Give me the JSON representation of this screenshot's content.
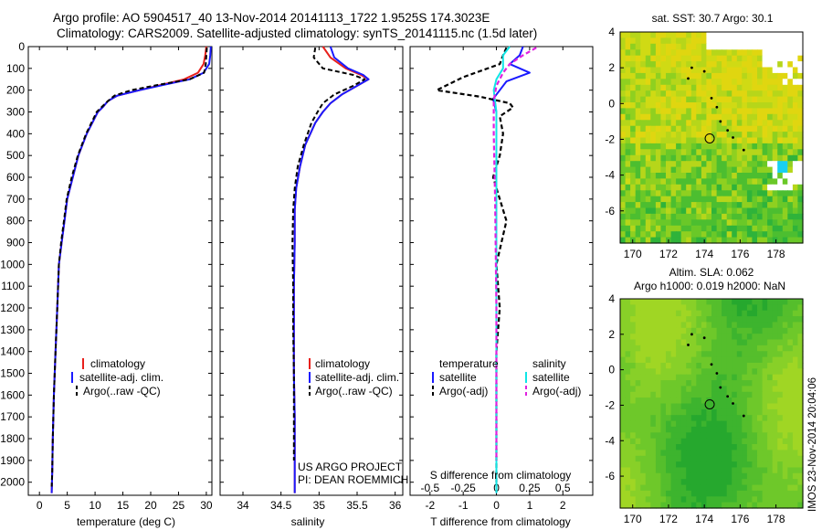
{
  "header": {
    "title_line1": "Argo profile: AO 5904517_40 13-Nov-2014 20141113_1722 1.9525S 174.3023E",
    "title_line2": "Climatology: CARS2009. Satellite-adjusted climatology: synTS_20141115.nc (1.5d later)"
  },
  "credit": {
    "line1": "US ARGO PROJECT",
    "line2": "PI: DEAN ROEMMICH"
  },
  "watermark": "IMOS 23-Nov-2014 20:04:06",
  "colors": {
    "climatology": "#e8201c",
    "satellite": "#1a1aff",
    "argo": "#000000",
    "sat_diff": "#10e6e6",
    "argo_s_diff": "#e020e0",
    "map_low": "#1aa832",
    "map_mid": "#7acc22",
    "map_high": "#d8dc10",
    "map_white": "#ffffff",
    "map_cyan": "#18d0f0"
  },
  "legend_profile": {
    "climatology": "climatology",
    "satellite": "satellite-adj. clim.",
    "argo": "Argo(..raw -QC)"
  },
  "legend_diff": {
    "temperature_header": "temperature",
    "salinity_header": "salinity",
    "t_satellite": "satellite",
    "t_argo": "Argo(-adj)",
    "s_satellite": "satellite",
    "s_argo": "Argo(-adj)"
  },
  "sst_map": {
    "title": "sat. SST: 30.7  Argo: 30.1",
    "float_lon": 174.3,
    "float_lat": -1.95
  },
  "sla_map": {
    "title_line1": "Altim. SLA: 0.062",
    "title_line2": "Argo h1000: 0.019  h2000: NaN",
    "float_lon": 174.3,
    "float_lat": -1.95
  },
  "chart_data": [
    {
      "type": "line",
      "panel": "temperature",
      "xlabel": "temperature (deg C)",
      "ylabel": "",
      "xlim": [
        -2,
        31
      ],
      "ylim": [
        2060,
        0
      ],
      "xticks": [
        0,
        5,
        10,
        15,
        20,
        25,
        30
      ],
      "yticks": [
        0,
        100,
        200,
        300,
        400,
        500,
        600,
        700,
        800,
        900,
        1000,
        1100,
        1200,
        1300,
        1400,
        1500,
        1600,
        1700,
        1800,
        1900,
        2000
      ],
      "series": [
        {
          "name": "climatology",
          "x": [
            30.0,
            29.8,
            29.5,
            28.5,
            26.0,
            22.0,
            18.0,
            14.0,
            12.3,
            11.5,
            10.5,
            8.5,
            7.0,
            6.0,
            5.0,
            4.5,
            4.0,
            3.5,
            3.2,
            2.9,
            2.6,
            2.4,
            2.3,
            2.2
          ],
          "y": [
            0,
            40,
            80,
            120,
            150,
            175,
            200,
            225,
            250,
            275,
            300,
            400,
            500,
            600,
            700,
            800,
            900,
            1000,
            1200,
            1400,
            1600,
            1800,
            1950,
            2050
          ]
        },
        {
          "name": "satellite-adj. clim.",
          "x": [
            30.8,
            30.7,
            30.5,
            29.5,
            27.0,
            22.5,
            18.0,
            14.0,
            12.3,
            11.5,
            10.5,
            8.5,
            7.0,
            6.0,
            5.0,
            4.5,
            4.0,
            3.5,
            3.2,
            2.9,
            2.6,
            2.4,
            2.3,
            2.2
          ],
          "y": [
            0,
            40,
            80,
            120,
            150,
            175,
            200,
            225,
            250,
            275,
            300,
            400,
            500,
            600,
            700,
            800,
            900,
            1000,
            1200,
            1400,
            1600,
            1800,
            1950,
            2050
          ]
        },
        {
          "name": "Argo(..raw -QC)",
          "x": [
            30.1,
            30.0,
            29.9,
            29.6,
            27.0,
            21.5,
            16.5,
            13.5,
            12.3,
            11.3,
            10.3,
            8.4,
            6.9,
            5.8,
            4.9,
            4.4,
            3.9,
            3.5,
            3.2,
            2.9,
            2.6,
            2.4,
            2.3,
            2.2
          ],
          "y": [
            5,
            40,
            80,
            120,
            150,
            175,
            200,
            225,
            250,
            275,
            300,
            400,
            500,
            600,
            700,
            800,
            900,
            1000,
            1200,
            1400,
            1600,
            1800,
            1950,
            2020
          ]
        }
      ]
    },
    {
      "type": "line",
      "panel": "salinity",
      "xlabel": "salinity",
      "ylabel": "",
      "xlim": [
        33.7,
        36.1
      ],
      "ylim": [
        2060,
        0
      ],
      "xticks": [
        34,
        34.5,
        35,
        35.5,
        36
      ],
      "series": [
        {
          "name": "climatology",
          "x": [
            35.05,
            35.15,
            35.35,
            35.55,
            35.65,
            35.5,
            35.3,
            35.15,
            35.05,
            34.95,
            34.82,
            34.75,
            34.7,
            34.68,
            34.68,
            34.67,
            34.67,
            34.67,
            34.68,
            34.68,
            34.68
          ],
          "y": [
            0,
            50,
            100,
            130,
            150,
            180,
            220,
            260,
            300,
            350,
            450,
            550,
            650,
            750,
            900,
            1100,
            1300,
            1500,
            1700,
            1900,
            2050
          ]
        },
        {
          "name": "satellite-adj. clim.",
          "x": [
            35.15,
            35.2,
            35.38,
            35.58,
            35.65,
            35.5,
            35.3,
            35.15,
            35.05,
            34.95,
            34.82,
            34.75,
            34.7,
            34.68,
            34.68,
            34.67,
            34.67,
            34.67,
            34.68,
            34.68,
            34.68
          ],
          "y": [
            0,
            50,
            100,
            130,
            150,
            180,
            220,
            260,
            300,
            350,
            450,
            550,
            650,
            750,
            900,
            1100,
            1300,
            1500,
            1700,
            1900,
            2050
          ]
        },
        {
          "name": "Argo(..raw -QC)",
          "x": [
            34.95,
            34.93,
            35.05,
            35.45,
            35.6,
            35.45,
            35.2,
            35.05,
            34.98,
            34.9,
            34.8,
            34.72,
            34.68,
            34.66,
            34.65,
            34.66,
            34.66,
            34.67,
            34.67,
            34.67
          ],
          "y": [
            5,
            50,
            100,
            130,
            150,
            180,
            220,
            260,
            300,
            350,
            450,
            550,
            650,
            750,
            900,
            1100,
            1300,
            1500,
            1700,
            1900
          ]
        }
      ]
    },
    {
      "type": "line",
      "panel": "difference",
      "xlabel": "T difference from climatology",
      "top_axis_label": "S difference from climatology",
      "xlim": [
        -2.6,
        2.9
      ],
      "ylim": [
        2060,
        0
      ],
      "xticks": [
        -2,
        -1,
        0,
        1,
        2
      ],
      "top_xticks": [
        -0.5,
        -0.25,
        0,
        0.25,
        0.5
      ],
      "top_xlim": [
        -0.65,
        0.725
      ],
      "series": [
        {
          "name": "temperature satellite",
          "axis": "T",
          "x": [
            0.8,
            0.7,
            0.4,
            1.0,
            0.3,
            0.1,
            -0.1,
            0.0,
            0.0,
            0.0,
            0.0,
            0.0,
            0.0
          ],
          "y": [
            0,
            40,
            80,
            120,
            160,
            200,
            240,
            300,
            500,
            800,
            1200,
            1600,
            2050
          ]
        },
        {
          "name": "temperature Argo(-adj)",
          "axis": "T",
          "x": [
            0.3,
            0.2,
            0.1,
            -1.0,
            -1.8,
            -0.5,
            0.4,
            0.5,
            0.1,
            0.2,
            0.1,
            -0.1,
            0.1,
            0.3,
            0.0,
            0.1,
            0.0,
            0.0,
            0.0,
            0.0
          ],
          "y": [
            5,
            40,
            80,
            140,
            200,
            230,
            260,
            280,
            320,
            400,
            500,
            600,
            700,
            800,
            1000,
            1200,
            1400,
            1600,
            1800,
            2020
          ]
        },
        {
          "name": "salinity satellite",
          "axis": "S",
          "x": [
            0.1,
            0.05,
            0.05,
            0.0,
            -0.02,
            0.0,
            0.0,
            0.0,
            0.0
          ],
          "y": [
            0,
            40,
            100,
            150,
            200,
            300,
            600,
            1200,
            2050
          ]
        },
        {
          "name": "salinity Argo(-adj)",
          "axis": "S",
          "x": [
            0.3,
            0.2,
            0.1,
            0.05,
            0.0,
            -0.02,
            -0.02,
            -0.01,
            0.0,
            0.0
          ],
          "y": [
            5,
            40,
            80,
            120,
            180,
            250,
            400,
            700,
            1200,
            1900
          ]
        }
      ]
    }
  ]
}
